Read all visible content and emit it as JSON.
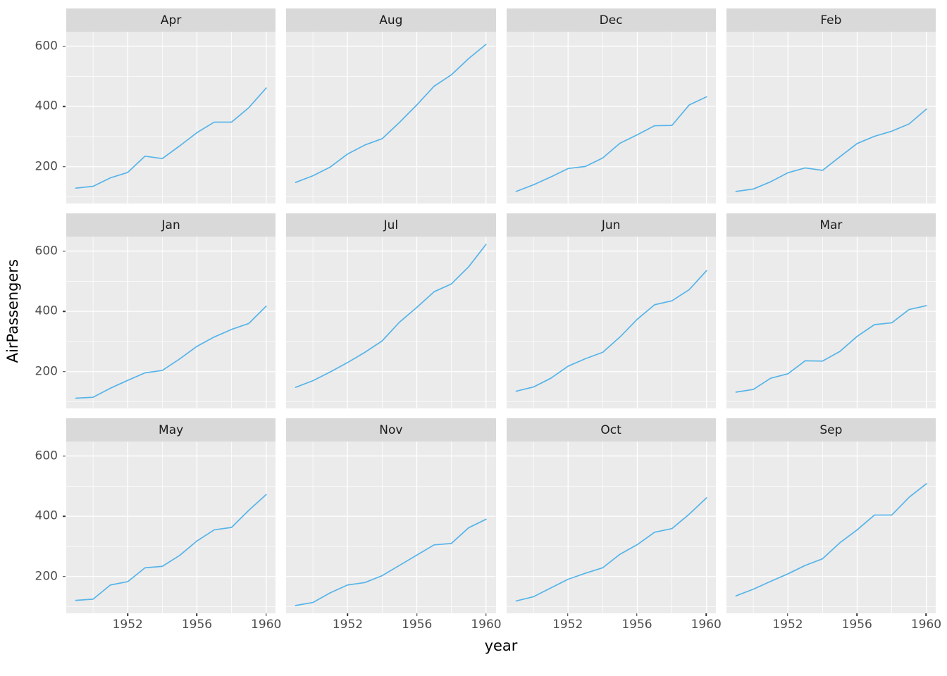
{
  "figure": {
    "kind": "ggplot-faceted-line-chart",
    "x_axis_title": "year",
    "y_axis_title": "AirPassengers"
  },
  "colors": {
    "line": "#56B4E9",
    "panel_background": "#EBEBEB",
    "strip_background": "#D9D9D9",
    "grid": "#FFFFFF",
    "axis_text": "#4D4D4D",
    "strip_text": "#1A1A1A"
  },
  "chart_data": {
    "type": "line",
    "title": "",
    "xlabel": "year",
    "ylabel": "AirPassengers",
    "legend": "none",
    "grid": "on",
    "x": [
      1949,
      1950,
      1951,
      1952,
      1953,
      1954,
      1955,
      1956,
      1957,
      1958,
      1959,
      1960
    ],
    "x_ticks": [
      1952,
      1956,
      1960
    ],
    "y_ticks": [
      200,
      400,
      600
    ],
    "x_minor": [
      1950,
      1954,
      1958
    ],
    "y_minor": [
      100,
      300,
      500
    ],
    "xlim": [
      1948.45,
      1960.55
    ],
    "ylim": [
      78,
      648
    ],
    "facets": [
      {
        "label": "Apr",
        "values": [
          129,
          135,
          163,
          181,
          235,
          227,
          269,
          313,
          348,
          348,
          396,
          461
        ]
      },
      {
        "label": "Aug",
        "values": [
          148,
          170,
          199,
          242,
          272,
          293,
          347,
          405,
          467,
          505,
          559,
          606
        ]
      },
      {
        "label": "Dec",
        "values": [
          118,
          140,
          166,
          194,
          201,
          229,
          278,
          306,
          336,
          337,
          405,
          432
        ]
      },
      {
        "label": "Feb",
        "values": [
          118,
          126,
          150,
          180,
          196,
          188,
          233,
          277,
          301,
          318,
          342,
          391
        ]
      },
      {
        "label": "Jan",
        "values": [
          112,
          115,
          145,
          171,
          196,
          204,
          242,
          284,
          315,
          340,
          360,
          417
        ]
      },
      {
        "label": "Jul",
        "values": [
          148,
          170,
          199,
          230,
          264,
          302,
          364,
          413,
          465,
          491,
          548,
          622
        ]
      },
      {
        "label": "Jun",
        "values": [
          135,
          149,
          178,
          218,
          243,
          264,
          315,
          374,
          422,
          435,
          472,
          535
        ]
      },
      {
        "label": "Mar",
        "values": [
          132,
          141,
          178,
          193,
          236,
          235,
          267,
          317,
          356,
          362,
          406,
          419
        ]
      },
      {
        "label": "May",
        "values": [
          121,
          125,
          172,
          183,
          229,
          234,
          270,
          318,
          355,
          363,
          420,
          472
        ]
      },
      {
        "label": "Nov",
        "values": [
          104,
          114,
          146,
          172,
          180,
          203,
          237,
          271,
          305,
          310,
          362,
          390
        ]
      },
      {
        "label": "Oct",
        "values": [
          119,
          133,
          162,
          191,
          211,
          229,
          274,
          306,
          347,
          359,
          407,
          461
        ]
      },
      {
        "label": "Sep",
        "values": [
          136,
          158,
          184,
          209,
          237,
          259,
          312,
          355,
          404,
          404,
          463,
          508
        ]
      }
    ]
  }
}
